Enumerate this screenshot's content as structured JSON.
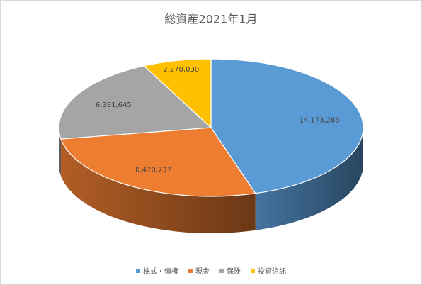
{
  "chart_data": {
    "type": "pie3d",
    "title": "総資産2021年1月",
    "categories": [
      "株式・債権",
      "現金",
      "保険",
      "投資信託"
    ],
    "values": [
      14173283,
      8470737,
      6381645,
      2270030
    ],
    "value_labels": [
      "14,173,283",
      "8,470,737",
      "6,381,645",
      "2,270,030"
    ],
    "colors": [
      "#5b9bd5",
      "#ed7d31",
      "#a5a5a5",
      "#ffc000"
    ],
    "legend": "bottom"
  }
}
